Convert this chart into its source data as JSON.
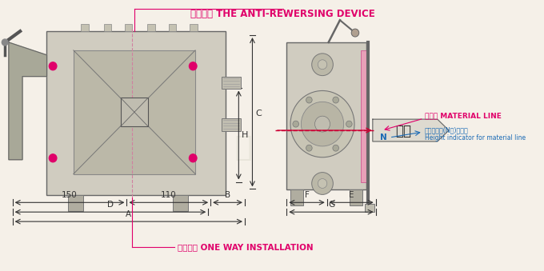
{
  "bg_color": "#f5f0e8",
  "title_text": "逆向裝置 THE ANTI-REWERSING DEVICE",
  "title_color": "#e0006a",
  "label_150": "150",
  "label_110": "110",
  "label_B": "B",
  "label_D": "D",
  "label_A": "A",
  "label_C": "C",
  "label_H": "H",
  "label_F": "F",
  "label_E": "E",
  "label_G": "G",
  "label_N": "N",
  "material_line_text": "材料線 MATERIAL LINE",
  "material_line_color": "#e0006a",
  "material_line_indicator": "材料線高度(N値)指示尺",
  "material_line_indicator2": "Height indicator for material line",
  "indicator_color": "#1a6ab5",
  "pinban_text": "平板",
  "oneway_text": "單向裝置 ONE WAY INSTALLATION",
  "oneway_color": "#e0006a",
  "dim_color": "#333333",
  "arrow_color": "#333333",
  "pink_color": "#e0006a",
  "watermark": "芊 赫 德 机"
}
